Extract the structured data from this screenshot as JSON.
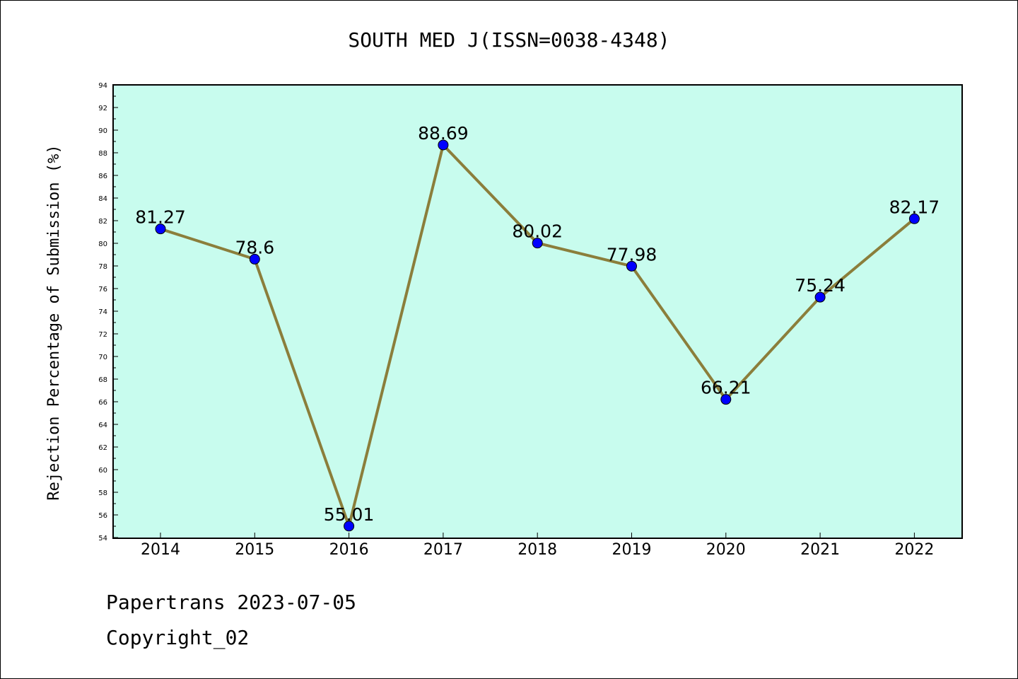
{
  "chart_data": {
    "type": "line",
    "title": "SOUTH MED J(ISSN=0038-4348)",
    "ylabel": "Rejection Percentage of Submission (%)",
    "xlabel": "",
    "categories": [
      "2014",
      "2015",
      "2016",
      "2017",
      "2018",
      "2019",
      "2020",
      "2021",
      "2022"
    ],
    "values": [
      81.27,
      78.6,
      55.01,
      88.69,
      80.02,
      77.98,
      66.21,
      75.24,
      82.17
    ],
    "data_labels": [
      "81.27",
      "78.6",
      "55.01",
      "88.69",
      "80.02",
      "77.98",
      "66.21",
      "75.24",
      "82.17"
    ],
    "ylim": [
      54,
      94
    ],
    "ytick_step": 2,
    "grid": false,
    "colors": {
      "plot_background": "#c8fcee",
      "line": "#8b7e3b",
      "marker": "#0000ff"
    }
  },
  "footer": {
    "line1": "Papertrans 2023-07-05",
    "line2": "Copyright_02"
  }
}
